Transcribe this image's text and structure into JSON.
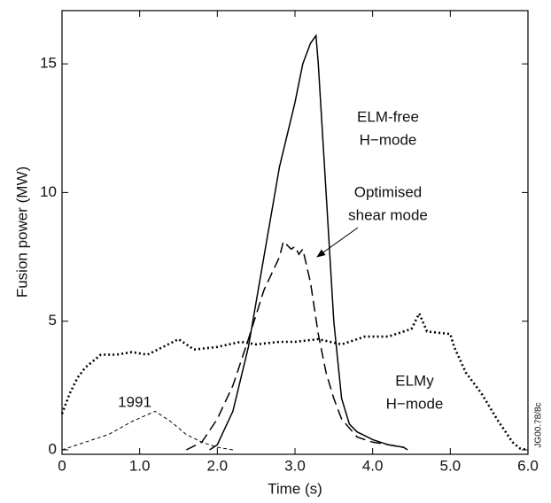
{
  "chart_data": {
    "type": "line",
    "xlabel": "Time (s)",
    "ylabel": "Fusion power (MW)",
    "xlim": [
      0,
      6
    ],
    "ylim": [
      0,
      17
    ],
    "xticks": [
      0,
      {
        "value": 1,
        "label": "1.0"
      },
      {
        "value": 2,
        "label": "2.0"
      },
      {
        "value": 3,
        "label": "3.0"
      },
      {
        "value": 4,
        "label": "4.0"
      },
      {
        "value": 5,
        "label": "5.0"
      },
      {
        "value": 6,
        "label": "6.0"
      }
    ],
    "yticks": [
      0,
      5,
      10,
      15
    ],
    "series": [
      {
        "color": "#000000",
        "dash": "solid",
        "x": [
          1.9,
          2.0,
          2.2,
          2.4,
          2.6,
          2.8,
          3.0,
          3.1,
          3.2,
          3.27,
          3.3,
          3.4,
          3.5,
          3.6,
          3.7,
          3.8,
          4.0,
          4.2,
          4.4,
          4.45
        ],
        "values": [
          0,
          0.2,
          1.5,
          4,
          7.5,
          11,
          13.5,
          15,
          15.8,
          16.1,
          15,
          10,
          5,
          2,
          1,
          0.7,
          0.4,
          0.2,
          0.1,
          0
        ]
      },
      {
        "color": "#000000",
        "dash": "long-dash",
        "x": [
          1.6,
          1.8,
          2.0,
          2.2,
          2.4,
          2.6,
          2.8,
          2.85,
          2.95,
          3.0,
          3.05,
          3.1,
          3.2,
          3.3,
          3.4,
          3.5,
          3.6,
          3.8,
          4.0,
          4.4
        ],
        "values": [
          0,
          0.3,
          1.2,
          2.5,
          4.3,
          6.2,
          7.5,
          8.1,
          7.8,
          7.9,
          7.6,
          7.8,
          6.5,
          4.5,
          3,
          2,
          1.2,
          0.5,
          0.3,
          0.1
        ]
      },
      {
        "color": "#000000",
        "dash": "dotted",
        "x": [
          0,
          0.1,
          0.2,
          0.3,
          0.5,
          0.7,
          0.9,
          1.1,
          1.3,
          1.5,
          1.7,
          2.0,
          2.3,
          2.5,
          2.8,
          3.0,
          3.3,
          3.6,
          3.9,
          4.2,
          4.5,
          4.6,
          4.7,
          5.0,
          5.05,
          5.2,
          5.4,
          5.6,
          5.8,
          5.9,
          6.0
        ],
        "values": [
          1.4,
          2.2,
          2.8,
          3.2,
          3.7,
          3.7,
          3.8,
          3.7,
          4.0,
          4.3,
          3.9,
          4.0,
          4.2,
          4.1,
          4.2,
          4.2,
          4.3,
          4.1,
          4.4,
          4.4,
          4.7,
          5.3,
          4.6,
          4.5,
          4.0,
          3.0,
          2.2,
          1.2,
          0.3,
          0.05,
          0
        ]
      },
      {
        "color": "#000000",
        "dash": "short-dash",
        "x": [
          0,
          0.3,
          0.6,
          0.9,
          1.2,
          1.4,
          1.6,
          1.8,
          2.0,
          2.2
        ],
        "values": [
          0,
          0.3,
          0.6,
          1.1,
          1.5,
          1.1,
          0.6,
          0.3,
          0.1,
          0
        ]
      }
    ],
    "annotations": [
      {
        "lines": [
          "ELM-free",
          "H−mode"
        ]
      },
      {
        "lines": [
          "Optimised",
          "shear mode"
        ]
      },
      {
        "lines": [
          "ELMy",
          "H−mode"
        ]
      },
      {
        "lines": [
          "1991"
        ]
      }
    ],
    "watermark": "JG00.78/8c"
  }
}
